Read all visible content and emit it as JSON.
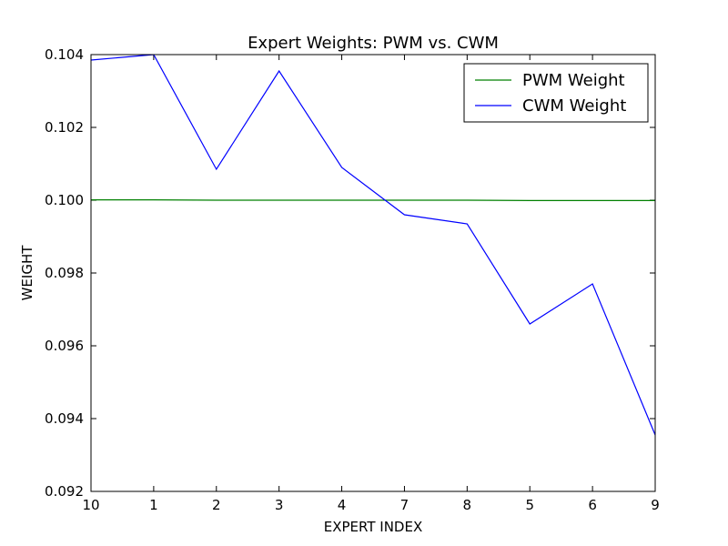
{
  "chart_data": {
    "type": "line",
    "title": "Expert Weights: PWM vs. CWM",
    "xlabel": "EXPERT INDEX",
    "ylabel": "WEIGHT",
    "categories": [
      "10",
      "1",
      "2",
      "3",
      "4",
      "7",
      "8",
      "5",
      "6",
      "9"
    ],
    "ylim": [
      0.092,
      0.104
    ],
    "yticks": [
      0.092,
      0.094,
      0.096,
      0.098,
      0.1,
      0.102,
      0.104
    ],
    "ytick_labels": [
      "0.092",
      "0.094",
      "0.096",
      "0.098",
      "0.100",
      "0.102",
      "0.104"
    ],
    "legend_position": "top-right",
    "grid": false,
    "series": [
      {
        "name": "PWM Weight",
        "color": "#008000",
        "values": [
          0.10001,
          0.10001,
          0.1,
          0.1,
          0.1,
          0.1,
          0.1,
          0.09999,
          0.09999,
          0.09999
        ]
      },
      {
        "name": "CWM Weight",
        "color": "#0000ff",
        "values": [
          0.10385,
          0.104,
          0.10085,
          0.10355,
          0.1009,
          0.0996,
          0.09935,
          0.0966,
          0.0977,
          0.09355
        ]
      }
    ]
  }
}
